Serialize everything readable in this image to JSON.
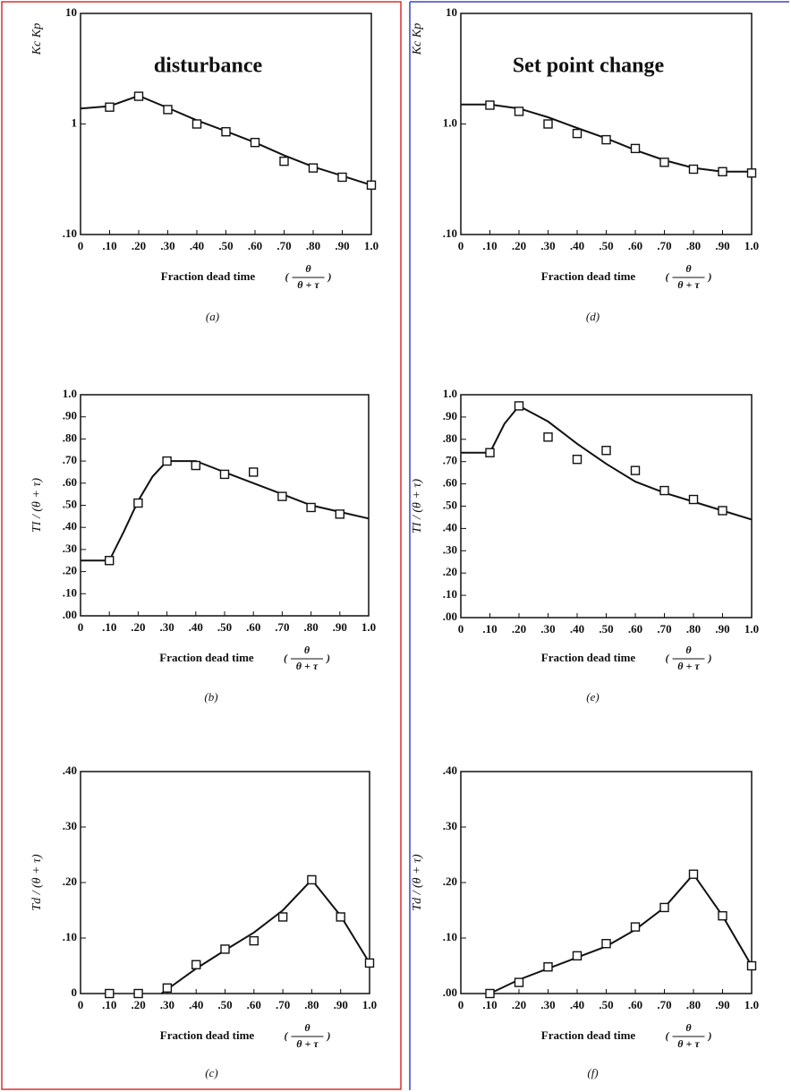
{
  "chart_data": [
    {
      "type": "line",
      "title": "disturbance",
      "title_color": "#e0202a",
      "ylabel": "Kc Kp",
      "xlabel": "Fraction dead time",
      "x_fraction": {
        "numerator": "θ",
        "denominator": "θ + τ"
      },
      "caption": "(a)",
      "log_y": true,
      "xlim": [
        0,
        1
      ],
      "ylim": [
        0.1,
        10
      ],
      "xticks": [
        0,
        {
          "value": 0.1,
          "label": ".10"
        },
        {
          "value": 0.2,
          "label": ".20"
        },
        {
          "value": 0.3,
          "label": ".30"
        },
        {
          "value": 0.4,
          "label": ".40"
        },
        {
          "value": 0.5,
          "label": ".50"
        },
        {
          "value": 0.6,
          "label": ".60"
        },
        {
          "value": 0.7,
          "label": ".70"
        },
        {
          "value": 0.8,
          "label": ".80"
        },
        {
          "value": 0.9,
          "label": ".90"
        },
        {
          "value": 1,
          "label": "1.0"
        }
      ],
      "yticks": [
        {
          "value": 0.1,
          "label": ".10"
        },
        1,
        10
      ],
      "series": [
        {
          "style": "line",
          "color": "#111111",
          "x": [
            0,
            0.1,
            0.2,
            0.3,
            0.4,
            0.5,
            0.6,
            0.7,
            0.8,
            0.9,
            1
          ],
          "values": [
            1.38,
            1.45,
            1.8,
            1.4,
            1.08,
            0.86,
            0.68,
            0.52,
            0.41,
            0.34,
            0.28
          ]
        },
        {
          "style": "square",
          "color": "#111111",
          "x": [
            0.1,
            0.2,
            0.3,
            0.4,
            0.5,
            0.6,
            0.7,
            0.8,
            0.9,
            1
          ],
          "values": [
            1.42,
            1.78,
            1.35,
            1.0,
            0.85,
            0.68,
            0.46,
            0.4,
            0.33,
            0.28
          ]
        }
      ]
    },
    {
      "type": "line",
      "ylabel": "TI / (θ + τ)",
      "xlabel": "Fraction dead time",
      "x_fraction": {
        "numerator": "θ",
        "denominator": "θ + τ"
      },
      "caption": "(b)",
      "log_y": false,
      "xlim": [
        0,
        1
      ],
      "ylim": [
        0,
        1
      ],
      "xticks": [
        0,
        {
          "value": 0.1,
          "label": ".10"
        },
        {
          "value": 0.2,
          "label": ".20"
        },
        {
          "value": 0.3,
          "label": ".30"
        },
        {
          "value": 0.4,
          "label": ".40"
        },
        {
          "value": 0.5,
          "label": ".50"
        },
        {
          "value": 0.6,
          "label": ".60"
        },
        {
          "value": 0.7,
          "label": ".70"
        },
        {
          "value": 0.8,
          "label": ".80"
        },
        {
          "value": 0.9,
          "label": ".90"
        },
        {
          "value": 1,
          "label": "1.0"
        }
      ],
      "yticks": [
        {
          "value": 0,
          "label": ".00"
        },
        {
          "value": 0.1,
          "label": ".10"
        },
        {
          "value": 0.2,
          "label": ".20"
        },
        {
          "value": 0.3,
          "label": ".30"
        },
        {
          "value": 0.4,
          "label": ".40"
        },
        {
          "value": 0.5,
          "label": ".50"
        },
        {
          "value": 0.6,
          "label": ".60"
        },
        {
          "value": 0.7,
          "label": ".70"
        },
        {
          "value": 0.8,
          "label": ".80"
        },
        {
          "value": 0.9,
          "label": ".90"
        },
        {
          "value": 1,
          "label": "1.0"
        }
      ],
      "series": [
        {
          "style": "line",
          "color": "#111111",
          "x": [
            0,
            0.1,
            0.15,
            0.2,
            0.25,
            0.3,
            0.4,
            0.5,
            0.6,
            0.7,
            0.8,
            0.9,
            1
          ],
          "values": [
            0.25,
            0.25,
            0.38,
            0.52,
            0.63,
            0.7,
            0.7,
            0.65,
            0.6,
            0.55,
            0.5,
            0.47,
            0.44
          ]
        },
        {
          "style": "square",
          "color": "#111111",
          "x": [
            0.1,
            0.2,
            0.3,
            0.4,
            0.5,
            0.6,
            0.7,
            0.8,
            0.9
          ],
          "values": [
            0.25,
            0.51,
            0.7,
            0.68,
            0.64,
            0.65,
            0.54,
            0.49,
            0.46
          ]
        }
      ]
    },
    {
      "type": "line",
      "ylabel": "Td / (θ + τ)",
      "xlabel": "Fraction dead time",
      "x_fraction": {
        "numerator": "θ",
        "denominator": "θ + τ"
      },
      "caption": "(c)",
      "log_y": false,
      "xlim": [
        0,
        1
      ],
      "ylim": [
        0,
        0.4
      ],
      "xticks": [
        0,
        {
          "value": 0.1,
          "label": ".10"
        },
        {
          "value": 0.2,
          "label": ".20"
        },
        {
          "value": 0.3,
          "label": ".30"
        },
        {
          "value": 0.4,
          "label": ".40"
        },
        {
          "value": 0.5,
          "label": ".50"
        },
        {
          "value": 0.6,
          "label": ".60"
        },
        {
          "value": 0.7,
          "label": ".70"
        },
        {
          "value": 0.8,
          "label": ".80"
        },
        {
          "value": 0.9,
          "label": ".90"
        },
        {
          "value": 1,
          "label": "1.0"
        }
      ],
      "yticks": [
        0,
        {
          "value": 0.1,
          "label": ".10"
        },
        {
          "value": 0.2,
          "label": ".20"
        },
        {
          "value": 0.3,
          "label": ".30"
        },
        {
          "value": 0.4,
          "label": ".40"
        }
      ],
      "series": [
        {
          "style": "line",
          "color": "#111111",
          "x": [
            0.28,
            0.4,
            0.5,
            0.6,
            0.7,
            0.8,
            0.9,
            1
          ],
          "values": [
            0,
            0.045,
            0.078,
            0.11,
            0.15,
            0.205,
            0.14,
            0.055
          ]
        },
        {
          "style": "square",
          "color": "#111111",
          "x": [
            0.1,
            0.2,
            0.3,
            0.4,
            0.5,
            0.6,
            0.7,
            0.8,
            0.9,
            1
          ],
          "values": [
            0,
            0,
            0.01,
            0.052,
            0.08,
            0.095,
            0.138,
            0.205,
            0.138,
            0.055
          ]
        }
      ]
    },
    {
      "type": "line",
      "title": "Set point change",
      "title_color": "#3a3ad0",
      "ylabel": "Kc Kp",
      "xlabel": "Fraction dead time",
      "x_fraction": {
        "numerator": "θ",
        "denominator": "θ + τ"
      },
      "caption": "(d)",
      "log_y": true,
      "xlim": [
        0,
        1
      ],
      "ylim": [
        0.1,
        10
      ],
      "xticks": [
        0,
        {
          "value": 0.1,
          "label": ".10"
        },
        {
          "value": 0.2,
          "label": ".20"
        },
        {
          "value": 0.3,
          "label": ".30"
        },
        {
          "value": 0.4,
          "label": ".40"
        },
        {
          "value": 0.5,
          "label": ".50"
        },
        {
          "value": 0.6,
          "label": ".60"
        },
        {
          "value": 0.7,
          "label": ".70"
        },
        {
          "value": 0.8,
          "label": ".80"
        },
        {
          "value": 0.9,
          "label": ".90"
        },
        {
          "value": 1,
          "label": "1.0"
        }
      ],
      "yticks": [
        {
          "value": 0.1,
          "label": ".10"
        },
        {
          "value": 1,
          "label": "1.0"
        },
        10
      ],
      "series": [
        {
          "style": "line",
          "color": "#111111",
          "x": [
            0,
            0.1,
            0.2,
            0.3,
            0.4,
            0.5,
            0.6,
            0.7,
            0.8,
            0.9,
            1
          ],
          "values": [
            1.5,
            1.5,
            1.38,
            1.15,
            0.92,
            0.74,
            0.58,
            0.47,
            0.4,
            0.37,
            0.37
          ]
        },
        {
          "style": "square",
          "color": "#111111",
          "x": [
            0.1,
            0.2,
            0.3,
            0.4,
            0.5,
            0.6,
            0.7,
            0.8,
            0.9,
            1
          ],
          "values": [
            1.48,
            1.3,
            1.0,
            0.82,
            0.72,
            0.6,
            0.45,
            0.39,
            0.37,
            0.36
          ]
        }
      ]
    },
    {
      "type": "line",
      "ylabel": "TI / (θ + τ)",
      "xlabel": "Fraction dead time",
      "x_fraction": {
        "numerator": "θ",
        "denominator": "θ + τ"
      },
      "caption": "(e)",
      "log_y": false,
      "xlim": [
        0,
        1
      ],
      "ylim": [
        0,
        1
      ],
      "xticks": [
        0,
        {
          "value": 0.1,
          "label": ".10"
        },
        {
          "value": 0.2,
          "label": ".20"
        },
        {
          "value": 0.3,
          "label": ".30"
        },
        {
          "value": 0.4,
          "label": ".40"
        },
        {
          "value": 0.5,
          "label": ".50"
        },
        {
          "value": 0.6,
          "label": ".60"
        },
        {
          "value": 0.7,
          "label": ".70"
        },
        {
          "value": 0.8,
          "label": ".80"
        },
        {
          "value": 0.9,
          "label": ".90"
        },
        {
          "value": 1,
          "label": "1.0"
        }
      ],
      "yticks": [
        {
          "value": 0,
          "label": ".00"
        },
        {
          "value": 0.1,
          "label": ".10"
        },
        {
          "value": 0.2,
          "label": ".20"
        },
        {
          "value": 0.3,
          "label": ".30"
        },
        {
          "value": 0.4,
          "label": ".40"
        },
        {
          "value": 0.5,
          "label": ".50"
        },
        {
          "value": 0.6,
          "label": ".60"
        },
        {
          "value": 0.7,
          "label": ".70"
        },
        {
          "value": 0.8,
          "label": ".80"
        },
        {
          "value": 0.9,
          "label": ".90"
        },
        {
          "value": 1,
          "label": "1.0"
        }
      ],
      "series": [
        {
          "style": "line",
          "color": "#111111",
          "x": [
            0,
            0.1,
            0.15,
            0.2,
            0.3,
            0.4,
            0.5,
            0.6,
            0.7,
            0.8,
            0.9,
            1
          ],
          "values": [
            0.74,
            0.74,
            0.87,
            0.95,
            0.88,
            0.78,
            0.69,
            0.61,
            0.56,
            0.52,
            0.48,
            0.44
          ]
        },
        {
          "style": "square",
          "color": "#111111",
          "x": [
            0.1,
            0.2,
            0.3,
            0.4,
            0.5,
            0.6,
            0.7,
            0.8,
            0.9
          ],
          "values": [
            0.74,
            0.95,
            0.81,
            0.71,
            0.75,
            0.66,
            0.57,
            0.53,
            0.48
          ]
        }
      ]
    },
    {
      "type": "line",
      "ylabel": "Td / (θ + τ)",
      "xlabel": "Fraction dead time",
      "x_fraction": {
        "numerator": "θ",
        "denominator": "θ + τ"
      },
      "caption": "(f)",
      "log_y": false,
      "xlim": [
        0,
        1
      ],
      "ylim": [
        0,
        0.4
      ],
      "xticks": [
        0,
        {
          "value": 0.1,
          "label": ".10"
        },
        {
          "value": 0.2,
          "label": ".20"
        },
        {
          "value": 0.3,
          "label": ".30"
        },
        {
          "value": 0.4,
          "label": ".40"
        },
        {
          "value": 0.5,
          "label": ".50"
        },
        {
          "value": 0.6,
          "label": ".60"
        },
        {
          "value": 0.7,
          "label": ".70"
        },
        {
          "value": 0.8,
          "label": ".80"
        },
        {
          "value": 0.9,
          "label": ".90"
        },
        {
          "value": 1,
          "label": "1.0"
        }
      ],
      "yticks": [
        {
          "value": 0,
          "label": ".00"
        },
        {
          "value": 0.1,
          "label": ".10"
        },
        {
          "value": 0.2,
          "label": ".20"
        },
        {
          "value": 0.3,
          "label": ".30"
        },
        {
          "value": 0.4,
          "label": ".40"
        }
      ],
      "series": [
        {
          "style": "line",
          "color": "#111111",
          "x": [
            0.1,
            0.2,
            0.3,
            0.4,
            0.5,
            0.6,
            0.7,
            0.8,
            0.9,
            1
          ],
          "values": [
            0,
            0.025,
            0.045,
            0.065,
            0.085,
            0.115,
            0.155,
            0.215,
            0.14,
            0.05
          ]
        },
        {
          "style": "square",
          "color": "#111111",
          "x": [
            0.1,
            0.2,
            0.3,
            0.4,
            0.5,
            0.6,
            0.7,
            0.8,
            0.9,
            1
          ],
          "values": [
            0,
            0.02,
            0.048,
            0.068,
            0.09,
            0.12,
            0.155,
            0.215,
            0.14,
            0.05
          ]
        }
      ]
    }
  ]
}
